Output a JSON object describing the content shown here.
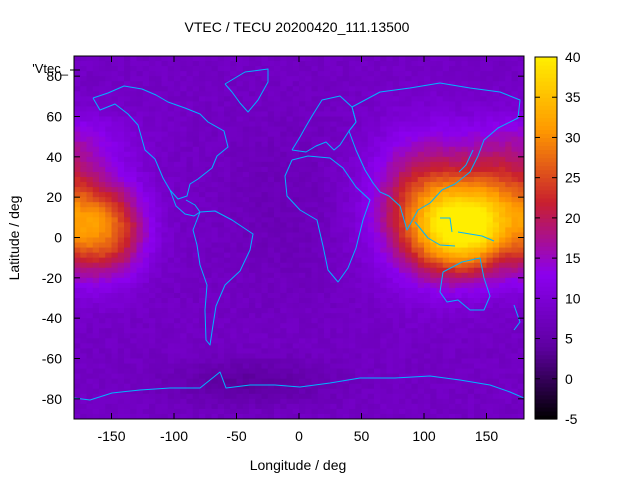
{
  "chart_data": {
    "type": "heatmap",
    "title": "VTEC / TECU 20200420_111.13500",
    "xlabel": "Longitude / deg",
    "ylabel": "Latitude / deg",
    "key_label": "'Vtec_",
    "xlim": [
      -180,
      180
    ],
    "ylim": [
      -90,
      90
    ],
    "x_ticks": [
      -150,
      -100,
      -50,
      0,
      50,
      100,
      150
    ],
    "y_ticks": [
      -80,
      -60,
      -40,
      -20,
      0,
      20,
      40,
      60,
      80
    ],
    "colorbar": {
      "min": -5,
      "max": 40,
      "ticks": [
        -5,
        0,
        5,
        10,
        15,
        20,
        25,
        30,
        35,
        40
      ]
    },
    "palette": [
      "#000000",
      "#5e00a0",
      "#8b00ee",
      "#c8202e",
      "#ff9900",
      "#ffee00"
    ],
    "background_level": 8,
    "regions": [
      {
        "lon": 133,
        "lat": 3,
        "sx": 28,
        "sy": 15,
        "amp": 25
      },
      {
        "lon": 120,
        "lat": 18,
        "sx": 40,
        "sy": 22,
        "amp": 10
      },
      {
        "lon": 165,
        "lat": 22,
        "sx": 22,
        "sy": 18,
        "amp": 8
      },
      {
        "lon": 95,
        "lat": 15,
        "sx": 25,
        "sy": 25,
        "amp": 7
      },
      {
        "lon": -150,
        "lat": 4,
        "sx": 20,
        "sy": 16,
        "amp": 17
      },
      {
        "lon": -172,
        "lat": 5,
        "sx": 14,
        "sy": 18,
        "amp": 6
      },
      {
        "lon": -170,
        "lat": 48,
        "sx": 30,
        "sy": 10,
        "amp": 4
      },
      {
        "lon": -40,
        "lat": -72,
        "sx": 45,
        "sy": 8,
        "amp": -4
      },
      {
        "lon": -10,
        "lat": 15,
        "sx": 35,
        "sy": 30,
        "amp": -1.5
      }
    ]
  }
}
